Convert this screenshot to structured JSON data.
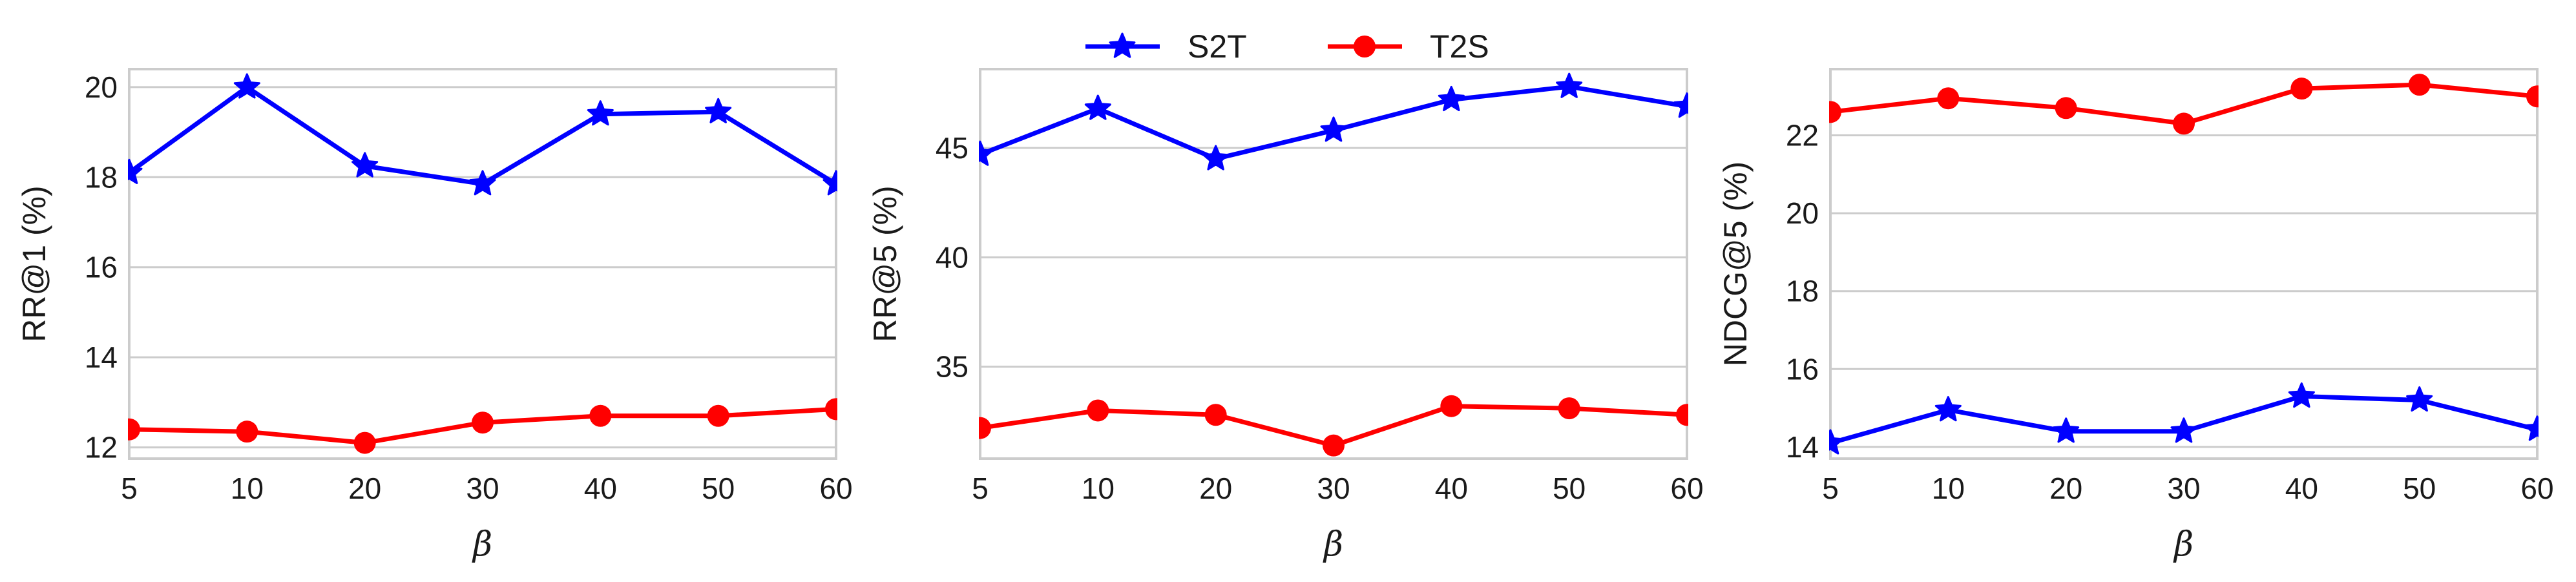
{
  "legend": {
    "placement": "top-center",
    "entries": [
      {
        "label": "S2T",
        "color": "#0000ff",
        "marker": "star"
      },
      {
        "label": "T2S",
        "color": "#ff0000",
        "marker": "circle"
      }
    ]
  },
  "chart_data": [
    {
      "type": "line",
      "categories": [
        "5",
        "10",
        "20",
        "30",
        "40",
        "50",
        "60"
      ],
      "xlabel": "β",
      "ylabel": "RR@1 (%)",
      "ylim": [
        11.75,
        20.4
      ],
      "yticks": [
        12,
        14,
        16,
        18,
        20
      ],
      "grid": "horizontal",
      "series": [
        {
          "name": "S2T",
          "color": "#0000ff",
          "marker": "star",
          "values": [
            18.1,
            20.0,
            18.25,
            17.85,
            19.4,
            19.45,
            17.85
          ]
        },
        {
          "name": "T2S",
          "color": "#ff0000",
          "marker": "circle",
          "values": [
            12.4,
            12.35,
            12.1,
            12.55,
            12.7,
            12.7,
            12.85
          ]
        }
      ]
    },
    {
      "type": "line",
      "categories": [
        "5",
        "10",
        "20",
        "30",
        "40",
        "50",
        "60"
      ],
      "xlabel": "β",
      "ylabel": "RR@5 (%)",
      "ylim": [
        30.8,
        48.6
      ],
      "yticks": [
        35,
        40,
        45
      ],
      "grid": "horizontal",
      "series": [
        {
          "name": "S2T",
          "color": "#0000ff",
          "marker": "star",
          "values": [
            44.7,
            46.8,
            44.5,
            45.8,
            47.2,
            47.8,
            46.9
          ]
        },
        {
          "name": "T2S",
          "color": "#ff0000",
          "marker": "circle",
          "values": [
            32.2,
            33.0,
            32.8,
            31.4,
            33.2,
            33.1,
            32.8
          ]
        }
      ]
    },
    {
      "type": "line",
      "categories": [
        "5",
        "10",
        "20",
        "30",
        "40",
        "50",
        "60"
      ],
      "xlabel": "β",
      "ylabel": "NDCG@5 (%)",
      "ylim": [
        13.7,
        23.7
      ],
      "yticks": [
        14,
        16,
        18,
        20,
        22
      ],
      "grid": "horizontal",
      "series": [
        {
          "name": "S2T",
          "color": "#0000ff",
          "marker": "star",
          "values": [
            14.1,
            14.95,
            14.4,
            14.4,
            15.3,
            15.2,
            14.45
          ]
        },
        {
          "name": "T2S",
          "color": "#ff0000",
          "marker": "circle",
          "values": [
            22.6,
            22.95,
            22.7,
            22.3,
            23.2,
            23.3,
            23.0
          ]
        }
      ]
    }
  ]
}
